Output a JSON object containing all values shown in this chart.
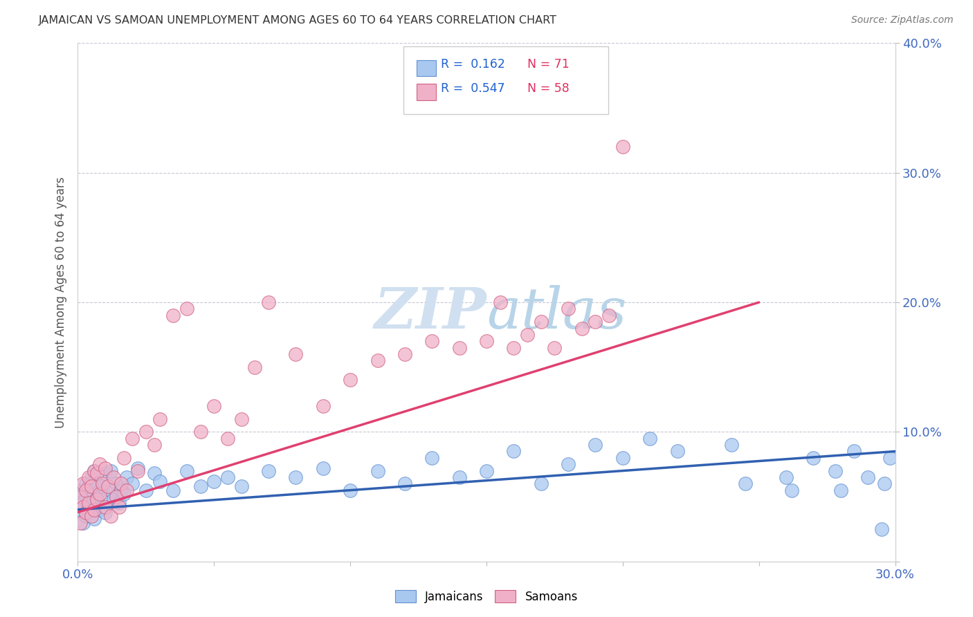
{
  "title": "JAMAICAN VS SAMOAN UNEMPLOYMENT AMONG AGES 60 TO 64 YEARS CORRELATION CHART",
  "source": "Source: ZipAtlas.com",
  "ylabel": "Unemployment Among Ages 60 to 64 years",
  "xlim": [
    0.0,
    0.3
  ],
  "ylim": [
    0.0,
    0.4
  ],
  "xticks": [
    0.0,
    0.05,
    0.1,
    0.15,
    0.2,
    0.25,
    0.3
  ],
  "yticks": [
    0.0,
    0.1,
    0.2,
    0.3,
    0.4
  ],
  "xtick_labels": [
    "0.0%",
    "",
    "",
    "",
    "",
    "",
    "30.0%"
  ],
  "ytick_labels_right": [
    "",
    "10.0%",
    "20.0%",
    "30.0%",
    "40.0%"
  ],
  "jamaicans_R": 0.162,
  "jamaicans_N": 71,
  "samoans_R": 0.547,
  "samoans_N": 58,
  "blue_color": "#a8c8f0",
  "blue_edge_color": "#6090d0",
  "pink_color": "#f0b0c8",
  "pink_edge_color": "#d06080",
  "blue_line_color": "#3060b0",
  "pink_line_color": "#e04070",
  "grid_color": "#c0c0d0",
  "watermark_color": "#d0e0f0",
  "jamaicans_x": [
    0.001,
    0.001,
    0.002,
    0.002,
    0.003,
    0.003,
    0.003,
    0.004,
    0.004,
    0.005,
    0.005,
    0.005,
    0.006,
    0.006,
    0.006,
    0.007,
    0.007,
    0.008,
    0.008,
    0.009,
    0.009,
    0.01,
    0.01,
    0.011,
    0.012,
    0.012,
    0.013,
    0.014,
    0.015,
    0.016,
    0.017,
    0.018,
    0.02,
    0.022,
    0.025,
    0.028,
    0.03,
    0.035,
    0.04,
    0.045,
    0.05,
    0.055,
    0.06,
    0.07,
    0.08,
    0.09,
    0.1,
    0.11,
    0.12,
    0.13,
    0.14,
    0.15,
    0.16,
    0.17,
    0.18,
    0.19,
    0.2,
    0.21,
    0.22,
    0.24,
    0.26,
    0.27,
    0.28,
    0.285,
    0.29,
    0.295,
    0.298,
    0.296,
    0.278,
    0.262,
    0.245
  ],
  "jamaicans_y": [
    0.04,
    0.055,
    0.03,
    0.045,
    0.035,
    0.05,
    0.06,
    0.042,
    0.058,
    0.038,
    0.048,
    0.065,
    0.033,
    0.052,
    0.07,
    0.045,
    0.06,
    0.04,
    0.055,
    0.042,
    0.058,
    0.038,
    0.068,
    0.05,
    0.055,
    0.07,
    0.048,
    0.06,
    0.045,
    0.055,
    0.052,
    0.065,
    0.06,
    0.072,
    0.055,
    0.068,
    0.062,
    0.055,
    0.07,
    0.058,
    0.062,
    0.065,
    0.058,
    0.07,
    0.065,
    0.072,
    0.055,
    0.07,
    0.06,
    0.08,
    0.065,
    0.07,
    0.085,
    0.06,
    0.075,
    0.09,
    0.08,
    0.095,
    0.085,
    0.09,
    0.065,
    0.08,
    0.055,
    0.085,
    0.065,
    0.025,
    0.08,
    0.06,
    0.07,
    0.055,
    0.06
  ],
  "samoans_x": [
    0.001,
    0.001,
    0.002,
    0.002,
    0.003,
    0.003,
    0.004,
    0.004,
    0.005,
    0.005,
    0.006,
    0.006,
    0.007,
    0.007,
    0.008,
    0.008,
    0.009,
    0.01,
    0.01,
    0.011,
    0.012,
    0.013,
    0.014,
    0.015,
    0.016,
    0.017,
    0.018,
    0.02,
    0.022,
    0.025,
    0.028,
    0.03,
    0.035,
    0.04,
    0.045,
    0.05,
    0.055,
    0.06,
    0.065,
    0.07,
    0.08,
    0.09,
    0.1,
    0.11,
    0.12,
    0.13,
    0.14,
    0.15,
    0.155,
    0.16,
    0.165,
    0.17,
    0.175,
    0.18,
    0.185,
    0.19,
    0.195,
    0.2
  ],
  "samoans_y": [
    0.03,
    0.05,
    0.042,
    0.06,
    0.038,
    0.055,
    0.045,
    0.065,
    0.035,
    0.058,
    0.04,
    0.07,
    0.048,
    0.068,
    0.052,
    0.075,
    0.06,
    0.042,
    0.072,
    0.058,
    0.035,
    0.065,
    0.05,
    0.042,
    0.06,
    0.08,
    0.055,
    0.095,
    0.07,
    0.1,
    0.09,
    0.11,
    0.19,
    0.195,
    0.1,
    0.12,
    0.095,
    0.11,
    0.15,
    0.2,
    0.16,
    0.12,
    0.14,
    0.155,
    0.16,
    0.17,
    0.165,
    0.17,
    0.2,
    0.165,
    0.175,
    0.185,
    0.165,
    0.195,
    0.18,
    0.185,
    0.19,
    0.32
  ],
  "jam_line_x0": 0.0,
  "jam_line_y0": 0.04,
  "jam_line_x1": 0.3,
  "jam_line_y1": 0.085,
  "sam_line_x0": 0.0,
  "sam_line_y0": 0.038,
  "sam_line_x1": 0.25,
  "sam_line_y1": 0.2
}
